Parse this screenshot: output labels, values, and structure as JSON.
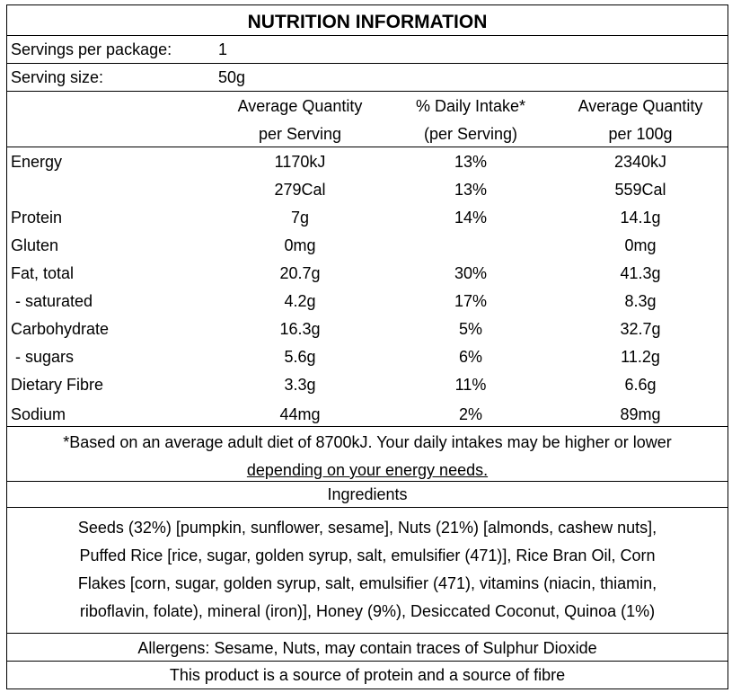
{
  "title": "NUTRITION INFORMATION",
  "servings": {
    "per_package_label": "Servings per package:",
    "per_package_value": "1",
    "size_label": "Serving size:",
    "size_value": "50g"
  },
  "headers": [
    {
      "line1": "Average Quantity",
      "line2": "per Serving"
    },
    {
      "line1": "% Daily Intake*",
      "line2": "(per Serving)"
    },
    {
      "line1": "Average Quantity",
      "line2": "per 100g"
    }
  ],
  "rows": [
    {
      "name": "Energy",
      "serving": "1170kJ",
      "daily": "13%",
      "per100": "2340kJ"
    },
    {
      "name": "",
      "serving": "279Cal",
      "daily": "13%",
      "per100": "559Cal"
    },
    {
      "name": "Protein",
      "serving": "7g",
      "daily": "14%",
      "per100": "14.1g"
    },
    {
      "name": "Gluten",
      "serving": "0mg",
      "daily": "",
      "per100": "0mg"
    },
    {
      "name": "Fat, total",
      "serving": "20.7g",
      "daily": "30%",
      "per100": "41.3g"
    },
    {
      "name": " - saturated",
      "serving": "4.2g",
      "daily": "17%",
      "per100": "8.3g"
    },
    {
      "name": "Carbohydrate",
      "serving": "16.3g",
      "daily": "5%",
      "per100": "32.7g"
    },
    {
      "name": " - sugars",
      "serving": "5.6g",
      "daily": "6%",
      "per100": "11.2g"
    },
    {
      "name": "Dietary Fibre",
      "serving": "3.3g",
      "daily": "11%",
      "per100": "6.6g"
    },
    {
      "name": "Sodium",
      "serving": "44mg",
      "daily": "2%",
      "per100": "89mg"
    }
  ],
  "footnote": {
    "line1": "*Based on an average adult diet of 8700kJ. Your daily intakes may be higher or lower",
    "line2": "depending on your energy needs."
  },
  "ingredients": {
    "heading": "Ingredients",
    "lines": [
      "Seeds (32%) [pumpkin, sunflower, sesame], Nuts (21%) [almonds, cashew nuts],",
      "Puffed Rice [rice, sugar, golden syrup, salt, emulsifier (471)], Rice Bran Oil, Corn",
      "Flakes [corn, sugar, golden syrup, salt, emulsifier (471), vitamins (niacin, thiamin,",
      "riboflavin, folate), mineral (iron)], Honey (9%), Desiccated Coconut, Quinoa (1%)"
    ]
  },
  "allergens": "Allergens: Sesame, Nuts, may contain traces of Sulphur Dioxide",
  "claim": "This product is a source of protein and a source of fibre"
}
